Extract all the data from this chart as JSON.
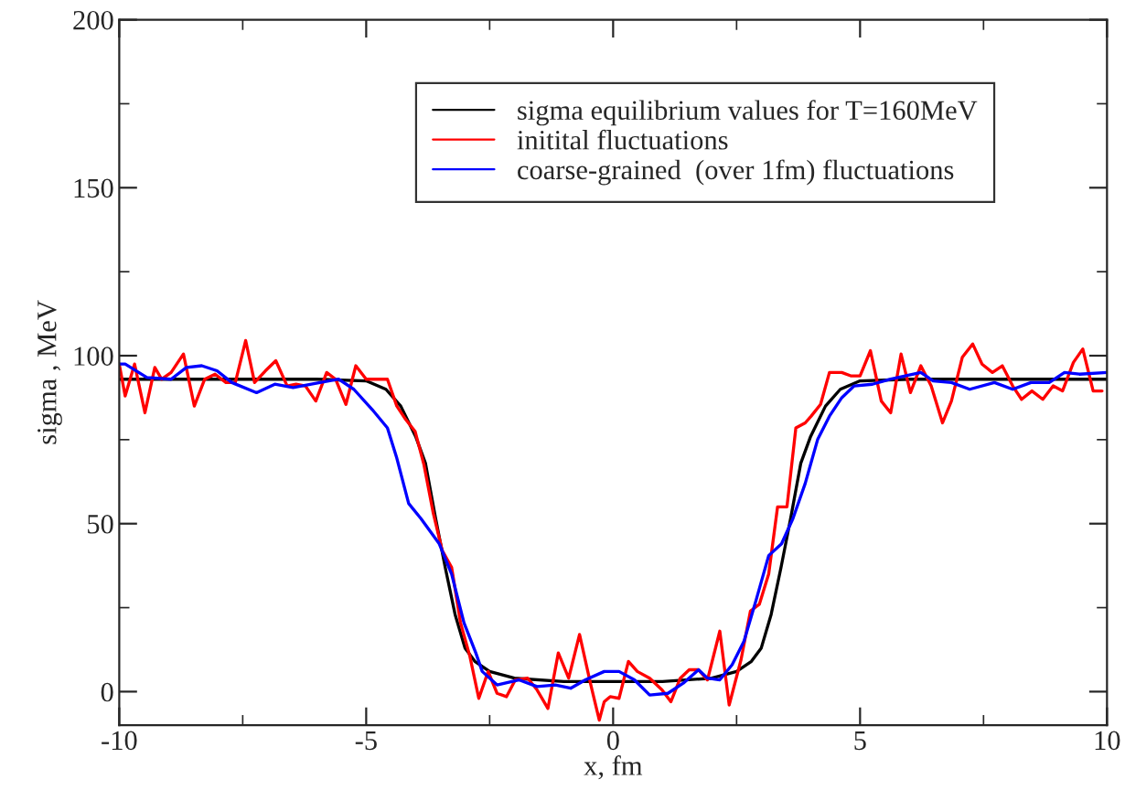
{
  "chart_data": {
    "type": "line",
    "xlabel": "x, fm",
    "ylabel": "sigma , MeV",
    "xlim": [
      -10,
      10
    ],
    "xticks": [
      -10,
      -5,
      0,
      5,
      10
    ],
    "ylim": [
      -10,
      200
    ],
    "yticks": [
      0,
      50,
      100,
      150,
      200
    ],
    "grid": false,
    "legend": "top right",
    "marker": "none",
    "line_style": "solid",
    "series": [
      {
        "name": "sigma equilibrium values for T=160MeV",
        "color": "#000000",
        "x": [
          -10,
          -6,
          -5,
          -4.6,
          -4.3,
          -4.0,
          -3.8,
          -3.6,
          -3.4,
          -3.2,
          -3.0,
          -2.8,
          -2.5,
          -2,
          -1,
          0,
          1,
          2,
          2.5,
          2.8,
          3.0,
          3.2,
          3.4,
          3.6,
          3.8,
          4.0,
          4.3,
          4.6,
          5,
          6,
          10
        ],
        "values": [
          93,
          93,
          92.5,
          90,
          85,
          76,
          68,
          52,
          37,
          23,
          13,
          9,
          6,
          4,
          3,
          3,
          3,
          4,
          6,
          9,
          13,
          23,
          37,
          52,
          68,
          76,
          85,
          90,
          92.5,
          93,
          93
        ]
      },
      {
        "name": "initital fluctuations",
        "color": "#ff0000",
        "x": [
          -10,
          -9.88,
          -9.69,
          -9.48,
          -9.28,
          -9.14,
          -8.95,
          -8.7,
          -8.48,
          -8.27,
          -8.06,
          -7.84,
          -7.65,
          -7.44,
          -7.26,
          -7.04,
          -6.83,
          -6.6,
          -6.42,
          -6.23,
          -6.02,
          -5.8,
          -5.62,
          -5.41,
          -5.21,
          -5.0,
          -4.57,
          -4.38,
          -4.2,
          -4.01,
          -3.83,
          -3.64,
          -3.46,
          -3.27,
          -3.09,
          -2.9,
          -2.72,
          -2.53,
          -2.35,
          -2.16,
          -1.98,
          -1.73,
          -1.54,
          -1.32,
          -1.11,
          -0.9,
          -0.68,
          -0.46,
          -0.28,
          -0.18,
          -0.06,
          0.12,
          0.31,
          0.49,
          0.74,
          0.99,
          1.17,
          1.36,
          1.54,
          1.73,
          1.91,
          2.16,
          2.35,
          2.59,
          2.78,
          2.96,
          3.15,
          3.33,
          3.52,
          3.7,
          3.89,
          4.01,
          4.2,
          4.38,
          4.63,
          4.81,
          5.0,
          5.21,
          5.43,
          5.62,
          5.83,
          6.02,
          6.23,
          6.44,
          6.67,
          6.85,
          7.07,
          7.28,
          7.47,
          7.68,
          7.88,
          8.09,
          8.27,
          8.48,
          8.7,
          8.91,
          9.1,
          9.32,
          9.51,
          9.72,
          9.9
        ],
        "values": [
          97.5,
          88,
          97.5,
          83,
          96.5,
          93,
          95,
          100.5,
          85,
          93,
          94.5,
          92,
          92,
          104.5,
          92,
          95.5,
          98.5,
          91,
          91.5,
          91,
          86.5,
          95,
          93,
          85.5,
          97,
          93,
          93,
          85,
          81,
          77.5,
          67.5,
          53,
          42,
          37,
          20.5,
          10.5,
          -2,
          6,
          -0.5,
          -1.5,
          3.5,
          4,
          0.5,
          -5,
          11.5,
          4,
          17,
          2.5,
          -8.5,
          -3,
          -1.5,
          -2,
          9,
          6,
          4,
          0.5,
          -3,
          4,
          6.5,
          6.5,
          3.5,
          18,
          -4,
          9.5,
          24,
          26,
          35,
          55,
          55,
          78.5,
          80,
          82,
          85.5,
          95,
          95,
          94,
          94,
          101.5,
          86.5,
          83,
          100.5,
          89,
          97,
          91,
          80,
          86.5,
          99.5,
          103.5,
          97.5,
          95,
          97,
          91,
          87,
          89.5,
          87,
          91,
          89.5,
          98,
          102,
          89.5,
          89.5
        ]
      },
      {
        "name": "coarse-grained  (over 1fm) fluctuations",
        "color": "#0000ff",
        "x": [
          -10,
          -9.88,
          -9.44,
          -8.95,
          -8.64,
          -8.33,
          -8.02,
          -7.72,
          -7.22,
          -6.85,
          -6.48,
          -6.11,
          -5.56,
          -5.25,
          -4.88,
          -4.57,
          -4.38,
          -4.14,
          -3.89,
          -3.52,
          -3.27,
          -3.02,
          -2.78,
          -2.65,
          -2.35,
          -1.91,
          -1.54,
          -1.17,
          -0.86,
          -0.56,
          -0.18,
          0.12,
          0.43,
          0.74,
          1.11,
          1.42,
          1.73,
          1.91,
          2.16,
          2.41,
          2.65,
          2.9,
          3.15,
          3.41,
          3.64,
          3.89,
          4.14,
          4.38,
          4.63,
          4.88,
          5.25,
          5.62,
          6.23,
          6.48,
          6.85,
          7.22,
          7.72,
          8.09,
          8.46,
          8.83,
          9.14,
          9.44,
          10
        ],
        "values": [
          97.5,
          97.5,
          93.5,
          93,
          96.5,
          97,
          95.5,
          92,
          89,
          91.5,
          90.5,
          91.5,
          93,
          90,
          84,
          78.5,
          69.5,
          56,
          51.5,
          44,
          35,
          20.5,
          11.5,
          6,
          2,
          3.5,
          1.5,
          2,
          1,
          3.5,
          6,
          6,
          3.5,
          -1,
          -0.5,
          2.5,
          6.5,
          4,
          3.5,
          8,
          15,
          27.5,
          40.5,
          44,
          51.5,
          62,
          75,
          82,
          87.5,
          91,
          91.5,
          93,
          95,
          92.5,
          92,
          90,
          92,
          90,
          92,
          92,
          95,
          94.5,
          95
        ]
      }
    ]
  }
}
